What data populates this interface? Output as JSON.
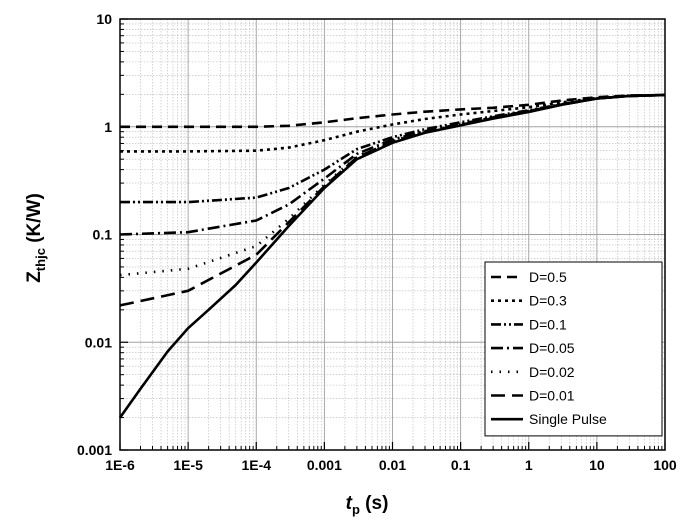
{
  "chart_data": {
    "type": "line",
    "title": "",
    "xlabel": {
      "main": "t",
      "sub": "p",
      "unit": " (s)"
    },
    "ylabel": {
      "main": "Z",
      "sub": "thjc",
      "unit": " (K/W)"
    },
    "xscale": "log",
    "yscale": "log",
    "xlim": [
      1e-06,
      100
    ],
    "ylim": [
      0.001,
      10
    ],
    "grid": "major and minor, dotted",
    "legend_position": "bottom-right",
    "x_ticks": [
      1e-06,
      1e-05,
      0.0001,
      0.001,
      0.01,
      0.1,
      1,
      10,
      100
    ],
    "x_tick_labels": [
      "1E-6",
      "1E-5",
      "1E-4",
      "0.001",
      "0.01",
      "0.1",
      "1",
      "10",
      "100"
    ],
    "y_ticks": [
      0.001,
      0.01,
      0.1,
      1,
      10
    ],
    "y_tick_labels": [
      "0.001",
      "0.01",
      "0.1",
      "1",
      "10"
    ],
    "series": [
      {
        "name": "D=0.5",
        "dash": "10,6",
        "x": [
          1e-06,
          1e-05,
          0.0001,
          0.0003,
          0.001,
          0.003,
          0.01,
          0.03,
          0.1,
          0.3,
          1,
          3,
          10,
          30,
          100
        ],
        "y": [
          1.0,
          1.0,
          1.0,
          1.02,
          1.1,
          1.2,
          1.3,
          1.38,
          1.45,
          1.5,
          1.6,
          1.75,
          1.88,
          1.95,
          1.97
        ]
      },
      {
        "name": "D=0.3",
        "dash": "3,4",
        "x": [
          1e-06,
          1e-05,
          0.0001,
          0.0003,
          0.001,
          0.003,
          0.01,
          0.03,
          0.1,
          0.3,
          1,
          3,
          10,
          30,
          100
        ],
        "y": [
          0.59,
          0.59,
          0.6,
          0.64,
          0.75,
          0.9,
          1.05,
          1.18,
          1.3,
          1.4,
          1.52,
          1.68,
          1.85,
          1.94,
          1.97
        ]
      },
      {
        "name": "D=0.1",
        "dash": "10,3,2,3,2,3",
        "x": [
          1e-06,
          1e-05,
          0.0001,
          0.0003,
          0.001,
          0.003,
          0.01,
          0.03,
          0.1,
          0.3,
          1,
          3,
          10,
          30,
          100
        ],
        "y": [
          0.2,
          0.2,
          0.22,
          0.27,
          0.4,
          0.62,
          0.8,
          0.95,
          1.1,
          1.25,
          1.42,
          1.62,
          1.83,
          1.93,
          1.97
        ]
      },
      {
        "name": "D=0.05",
        "dash": "12,4,2,4",
        "x": [
          1e-06,
          1e-05,
          0.0001,
          0.0003,
          0.001,
          0.003,
          0.01,
          0.03,
          0.1,
          0.3,
          1,
          3,
          10,
          30,
          100
        ],
        "y": [
          0.1,
          0.105,
          0.135,
          0.19,
          0.33,
          0.56,
          0.76,
          0.91,
          1.06,
          1.22,
          1.4,
          1.61,
          1.83,
          1.93,
          1.97
        ]
      },
      {
        "name": "D=0.02",
        "dash": "1.5,7",
        "x": [
          1e-06,
          1e-05,
          0.0001,
          0.0003,
          0.001,
          0.003,
          0.01,
          0.03,
          0.1,
          0.3,
          1,
          3,
          10,
          30,
          100
        ],
        "y": [
          0.042,
          0.048,
          0.078,
          0.14,
          0.29,
          0.53,
          0.74,
          0.9,
          1.05,
          1.21,
          1.39,
          1.61,
          1.83,
          1.93,
          1.97
        ]
      },
      {
        "name": "D=0.01",
        "dash": "14,7",
        "x": [
          1e-06,
          1e-05,
          0.0001,
          0.0003,
          0.001,
          0.003,
          0.01,
          0.03,
          0.1,
          0.3,
          1,
          3,
          10,
          30,
          100
        ],
        "y": [
          0.022,
          0.03,
          0.065,
          0.13,
          0.28,
          0.52,
          0.73,
          0.89,
          1.04,
          1.2,
          1.38,
          1.6,
          1.83,
          1.93,
          1.97
        ]
      },
      {
        "name": "Single Pulse",
        "dash": "",
        "x": [
          1e-06,
          2e-06,
          5e-06,
          1e-05,
          2e-05,
          5e-05,
          0.0001,
          0.0003,
          0.001,
          0.003,
          0.01,
          0.03,
          0.1,
          0.3,
          1,
          3,
          10,
          30,
          100
        ],
        "y": [
          0.002,
          0.0037,
          0.0082,
          0.0135,
          0.02,
          0.034,
          0.055,
          0.12,
          0.27,
          0.5,
          0.71,
          0.88,
          1.03,
          1.19,
          1.37,
          1.6,
          1.83,
          1.93,
          1.97
        ]
      }
    ]
  }
}
